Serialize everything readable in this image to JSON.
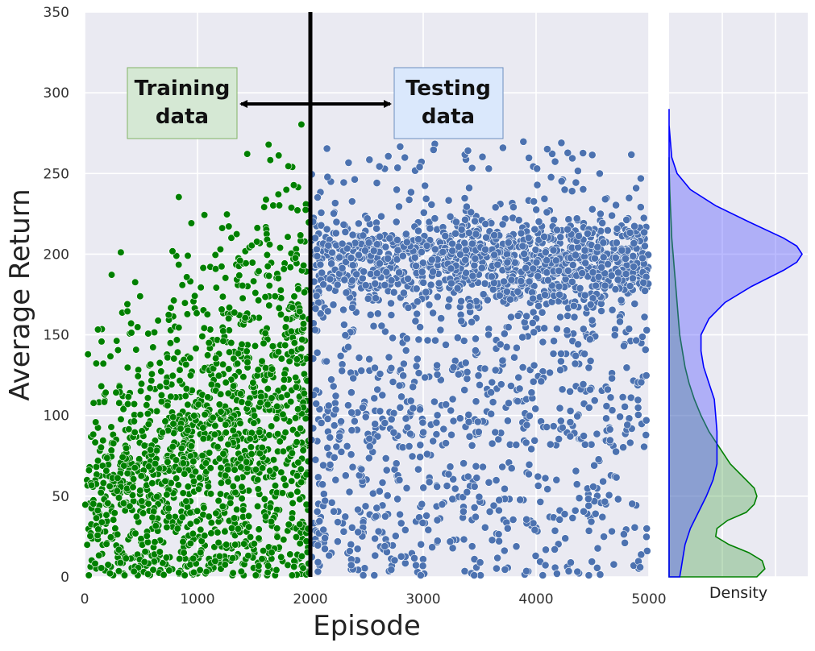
{
  "chart_data": [
    {
      "type": "scatter",
      "xlabel": "Episode",
      "ylabel": "Average Return",
      "xlim": [
        0,
        5000
      ],
      "ylim": [
        0,
        350
      ],
      "xticks": [
        "0",
        "1000",
        "2000",
        "3000",
        "4000",
        "5000"
      ],
      "yticks": [
        "0",
        "50",
        "100",
        "150",
        "200",
        "250",
        "300",
        "350"
      ],
      "grid": true,
      "split_episode": 2000,
      "series": [
        {
          "color": "#008000",
          "x_range": [
            0,
            2000
          ],
          "trend": "Average Return rises roughly from 0–50 near episode 0 to 50–230 near episode 2000; densest around 40–110"
        },
        {
          "color": "#4c72b0",
          "x_range": [
            2000,
            5000
          ],
          "trend": "Average Return spread 0–270; dense band near 190–220, rising to about 200 by episode 5000"
        }
      ],
      "annotations": [
        {
          "text_line1": "Training",
          "text_line2": "data",
          "fill": "#d5e8d4",
          "stroke": "#82b366"
        },
        {
          "text_line1": "Testing",
          "text_line2": "data",
          "fill": "#dae8fc",
          "stroke": "#6c8ebf"
        }
      ]
    },
    {
      "type": "area",
      "xlabel": "Density",
      "ylim": [
        0,
        350
      ],
      "series": [
        {
          "color": "#0000ff",
          "fill": "rgba(80,80,255,0.38)",
          "y": [
            0,
            5,
            10,
            20,
            30,
            40,
            50,
            60,
            70,
            80,
            90,
            100,
            110,
            120,
            130,
            140,
            150,
            160,
            170,
            180,
            190,
            195,
            200,
            205,
            210,
            220,
            230,
            240,
            250,
            260,
            270,
            280,
            290
          ],
          "density": [
            0.08,
            0.09,
            0.1,
            0.12,
            0.16,
            0.22,
            0.28,
            0.33,
            0.36,
            0.36,
            0.36,
            0.35,
            0.34,
            0.3,
            0.26,
            0.24,
            0.24,
            0.3,
            0.42,
            0.62,
            0.86,
            0.96,
            1.0,
            0.96,
            0.86,
            0.6,
            0.35,
            0.16,
            0.06,
            0.02,
            0.01,
            0.0,
            0.0
          ]
        },
        {
          "color": "#008000",
          "fill": "rgba(70,160,70,0.35)",
          "y": [
            0,
            5,
            10,
            15,
            20,
            25,
            30,
            35,
            40,
            45,
            50,
            55,
            60,
            65,
            70,
            80,
            90,
            100,
            110,
            120,
            130,
            140,
            150,
            160,
            170,
            180,
            190,
            200,
            210,
            220,
            230,
            240,
            250,
            260
          ],
          "density": [
            0.66,
            0.72,
            0.7,
            0.6,
            0.45,
            0.35,
            0.36,
            0.44,
            0.58,
            0.64,
            0.66,
            0.64,
            0.58,
            0.52,
            0.46,
            0.38,
            0.3,
            0.24,
            0.19,
            0.15,
            0.12,
            0.1,
            0.08,
            0.07,
            0.06,
            0.05,
            0.04,
            0.03,
            0.02,
            0.015,
            0.01,
            0.005,
            0.002,
            0.0
          ]
        }
      ]
    }
  ]
}
